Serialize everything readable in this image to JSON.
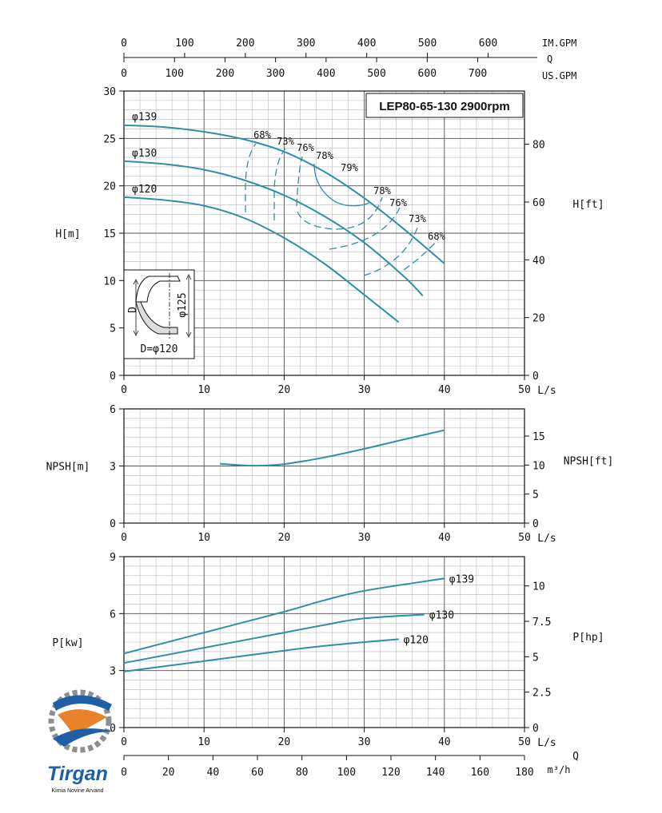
{
  "chart_data": [
    {
      "type": "line",
      "title": "LEP80-65-130 2900rpm",
      "ylabel": "H[m]",
      "ylabel_right": "H[ft]",
      "xlabel": "L/s",
      "xlim": [
        0,
        50
      ],
      "ylim": [
        0,
        30
      ],
      "xticks": [
        0,
        10,
        20,
        30,
        40,
        50
      ],
      "yticks": [
        0,
        5,
        10,
        15,
        20,
        25,
        30
      ],
      "yticks_right": [
        0,
        20,
        40,
        60,
        80
      ],
      "top_axes": [
        {
          "unit": "IM.GPM",
          "ticks": [
            0,
            100,
            200,
            300,
            400,
            500,
            600
          ]
        },
        {
          "unit": "US.GPM",
          "ticks": [
            0,
            100,
            200,
            300,
            400,
            500,
            600,
            700
          ]
        }
      ],
      "top_axis_symbol": "Q",
      "grid": true,
      "series": [
        {
          "name": "φ139",
          "x": [
            0,
            5,
            10,
            15,
            20,
            25,
            30,
            35,
            40
          ],
          "y": [
            26.4,
            26.2,
            25.7,
            24.9,
            23.6,
            21.5,
            18.7,
            15.4,
            11.8
          ]
        },
        {
          "name": "φ130",
          "x": [
            0,
            5,
            10,
            15,
            20,
            25,
            30,
            35,
            37.3
          ],
          "y": [
            22.6,
            22.3,
            21.7,
            20.6,
            19.0,
            16.8,
            14.0,
            10.4,
            8.4
          ]
        },
        {
          "name": "φ120",
          "x": [
            0,
            5,
            10,
            15,
            20,
            25,
            30,
            34.3
          ],
          "y": [
            18.8,
            18.5,
            17.9,
            16.6,
            14.5,
            11.8,
            8.5,
            5.6
          ]
        }
      ],
      "efficiency_labels": [
        "68%",
        "73%",
        "76%",
        "78%",
        "79%",
        "78%",
        "76%",
        "73%",
        "68%"
      ],
      "inset": {
        "dimension_labels": [
          "D",
          "φ125",
          "D=φ120"
        ]
      }
    },
    {
      "type": "line",
      "ylabel": "NPSH[m]",
      "ylabel_right": "NPSH[ft]",
      "xlabel": "L/s",
      "xlim": [
        0,
        50
      ],
      "ylim": [
        0,
        6
      ],
      "xticks": [
        0,
        10,
        20,
        30,
        40,
        50
      ],
      "yticks": [
        0,
        3,
        6
      ],
      "yticks_right": [
        0,
        5,
        10,
        15
      ],
      "grid": true,
      "series": [
        {
          "x": [
            12,
            15,
            17,
            20,
            25,
            30,
            35,
            40
          ],
          "y": [
            3.12,
            3.03,
            3.02,
            3.1,
            3.45,
            3.9,
            4.4,
            4.88
          ]
        }
      ]
    },
    {
      "type": "line",
      "ylabel": "P[kw]",
      "ylabel_right": "P[hp]",
      "xlabel": "L/s",
      "xlabel_bottom": "m³/h",
      "xlim": [
        0,
        50
      ],
      "ylim": [
        0,
        9
      ],
      "xticks": [
        0,
        10,
        20,
        30,
        40,
        50
      ],
      "xticks_bottom": [
        0,
        20,
        40,
        60,
        80,
        100,
        120,
        140,
        160,
        180
      ],
      "bottom_axis_symbol": "Q",
      "yticks": [
        0,
        3,
        6,
        9
      ],
      "yticks_right": [
        "0",
        "2.5",
        "5",
        "7.5",
        "10"
      ],
      "grid": true,
      "series": [
        {
          "name": "φ139",
          "x": [
            0,
            10,
            20,
            25,
            30,
            40
          ],
          "y": [
            3.9,
            5.0,
            6.1,
            6.7,
            7.2,
            7.85
          ]
        },
        {
          "name": "φ130",
          "x": [
            0,
            10,
            20,
            25,
            30,
            37.5
          ],
          "y": [
            3.4,
            4.2,
            5.0,
            5.4,
            5.75,
            5.95
          ]
        },
        {
          "name": "φ120",
          "x": [
            0,
            10,
            20,
            25,
            30,
            34.3
          ],
          "y": [
            2.95,
            3.5,
            4.05,
            4.3,
            4.5,
            4.65
          ]
        }
      ]
    }
  ],
  "logo": {
    "text": "Tirgan",
    "subtext": "Kimia Novine Arvand"
  },
  "colors": {
    "curve": "#2f8fa8",
    "grid": "#b9b9b9",
    "axis": "#111111"
  }
}
